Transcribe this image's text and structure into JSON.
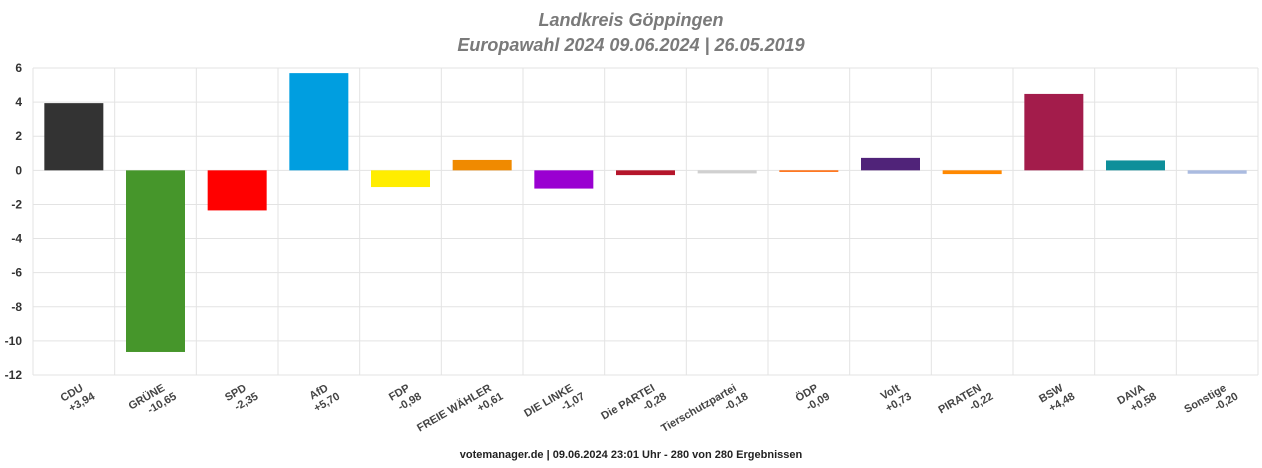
{
  "title": "Landkreis Göppingen",
  "subtitle": "Europawahl 2024 09.06.2024  | 26.05.2019",
  "footer": "votemanager.de | 09.06.2024 23:01 Uhr - 280 von 280 Ergebnissen",
  "chart_data": {
    "type": "bar",
    "categories": [
      "CDU",
      "GRÜNE",
      "SPD",
      "AfD",
      "FDP",
      "FREIE WÄHLER",
      "DIE LINKE",
      "Die PARTEI",
      "Tierschutzpartei",
      "ÖDP",
      "Volt",
      "PIRATEN",
      "BSW",
      "DAVA",
      "Sonstige"
    ],
    "values": [
      3.94,
      -10.65,
      -2.35,
      5.7,
      -0.98,
      0.61,
      -1.07,
      -0.28,
      -0.18,
      -0.09,
      0.73,
      -0.22,
      4.48,
      0.58,
      -0.2
    ],
    "value_labels": [
      "+3,94",
      "-10,65",
      "-2,35",
      "+5,70",
      "-0,98",
      "+0,61",
      "-1,07",
      "-0,28",
      "-0,18",
      "-0,09",
      "+0,73",
      "-0,22",
      "+4,48",
      "+0,58",
      "-0,20"
    ],
    "colors": [
      "#333333",
      "#46962b",
      "#ff0000",
      "#009ee0",
      "#ffed00",
      "#f08a00",
      "#9a00d1",
      "#b5152b",
      "#d0d0d0",
      "#ff6400",
      "#502379",
      "#ff8800",
      "#a31c4b",
      "#0e8f9a",
      "#aabbe0"
    ],
    "ylim": [
      -12,
      6
    ],
    "yticks": [
      6,
      4,
      2,
      0,
      -2,
      -4,
      -6,
      -8,
      -10,
      -12
    ],
    "grid": true,
    "legend": "none"
  }
}
